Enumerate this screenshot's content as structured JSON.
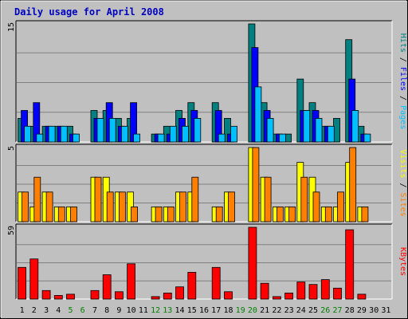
{
  "colors": {
    "background": "#c0c0c0",
    "panel": "#c0c0c0",
    "title": "#0000c0",
    "hits": "#008080",
    "files": "#0000ff",
    "pages": "#00c0ff",
    "visits": "#ffff00",
    "sites": "#ff8000",
    "kbytes": "#ff0000",
    "weekend_label": "#008000",
    "weekday_label": "#000000"
  },
  "chart_data": {
    "type": "bar",
    "title": "Daily usage for April 2008",
    "x": [
      "1",
      "2",
      "3",
      "4",
      "5",
      "6",
      "7",
      "8",
      "9",
      "10",
      "11",
      "12",
      "13",
      "14",
      "15",
      "16",
      "17",
      "18",
      "19",
      "20",
      "21",
      "22",
      "23",
      "24",
      "25",
      "26",
      "27",
      "28",
      "29",
      "30",
      "31"
    ],
    "weekend_days": [
      5,
      6,
      12,
      13,
      19,
      20,
      26,
      27
    ],
    "panels": [
      {
        "ymax": 15,
        "ymax_label": "15",
        "series": [
          {
            "name": "Hits",
            "color": "#008080",
            "values": [
              3,
              2,
              2,
              2,
              2,
              0,
              4,
              4,
              3,
              3,
              0,
              1,
              2,
              4,
              5,
              0,
              5,
              3,
              0,
              15,
              5,
              1,
              1,
              8,
              5,
              2,
              3,
              13,
              2,
              0,
              0
            ]
          },
          {
            "name": "Files",
            "color": "#0000ff",
            "values": [
              4,
              5,
              2,
              2,
              1,
              0,
              3,
              5,
              2,
              5,
              0,
              1,
              1,
              3,
              4,
              0,
              4,
              1,
              0,
              12,
              4,
              1,
              0,
              4,
              4,
              2,
              0,
              8,
              1,
              0,
              0
            ]
          },
          {
            "name": "Pages",
            "color": "#00c0ff",
            "values": [
              2,
              1,
              2,
              2,
              1,
              0,
              3,
              3,
              2,
              1,
              0,
              1,
              2,
              2,
              3,
              0,
              1,
              2,
              0,
              7,
              3,
              1,
              0,
              4,
              3,
              2,
              0,
              4,
              1,
              0,
              0
            ]
          }
        ],
        "side_labels": [
          {
            "text": "Hits",
            "color": "#008080"
          },
          {
            "text": " / ",
            "color": "#000000"
          },
          {
            "text": "Files",
            "color": "#0000ff"
          },
          {
            "text": " / ",
            "color": "#000000"
          },
          {
            "text": "Pages",
            "color": "#00c0ff"
          }
        ]
      },
      {
        "ymax": 5,
        "ymax_label": "5",
        "series": [
          {
            "name": "Visits",
            "color": "#ffff00",
            "values": [
              2,
              1,
              2,
              1,
              1,
              0,
              3,
              3,
              2,
              2,
              0,
              1,
              1,
              2,
              2,
              0,
              1,
              2,
              0,
              5,
              3,
              1,
              1,
              4,
              3,
              1,
              1,
              4,
              1,
              0,
              0
            ]
          },
          {
            "name": "Sites",
            "color": "#ff8000",
            "values": [
              2,
              3,
              2,
              1,
              1,
              0,
              3,
              2,
              2,
              1,
              0,
              1,
              1,
              2,
              3,
              0,
              1,
              2,
              0,
              5,
              3,
              1,
              1,
              3,
              2,
              1,
              2,
              5,
              1,
              0,
              0
            ]
          }
        ],
        "side_labels": [
          {
            "text": "Visits",
            "color": "#ffff00"
          },
          {
            "text": " / ",
            "color": "#000000"
          },
          {
            "text": "Sites",
            "color": "#ff8000"
          }
        ]
      },
      {
        "ymax": 59,
        "ymax_label": "59",
        "series": [
          {
            "name": "KBytes",
            "color": "#ff0000",
            "values": [
              26,
              33,
              7,
              3,
              4,
              0,
              7,
              20,
              6,
              29,
              0,
              2,
              5,
              10,
              22,
              0,
              26,
              6,
              0,
              59,
              13,
              2,
              5,
              14,
              12,
              16,
              9,
              57,
              4,
              0,
              0
            ]
          }
        ],
        "side_labels": [
          {
            "text": "KBytes",
            "color": "#ff0000"
          }
        ]
      }
    ]
  }
}
